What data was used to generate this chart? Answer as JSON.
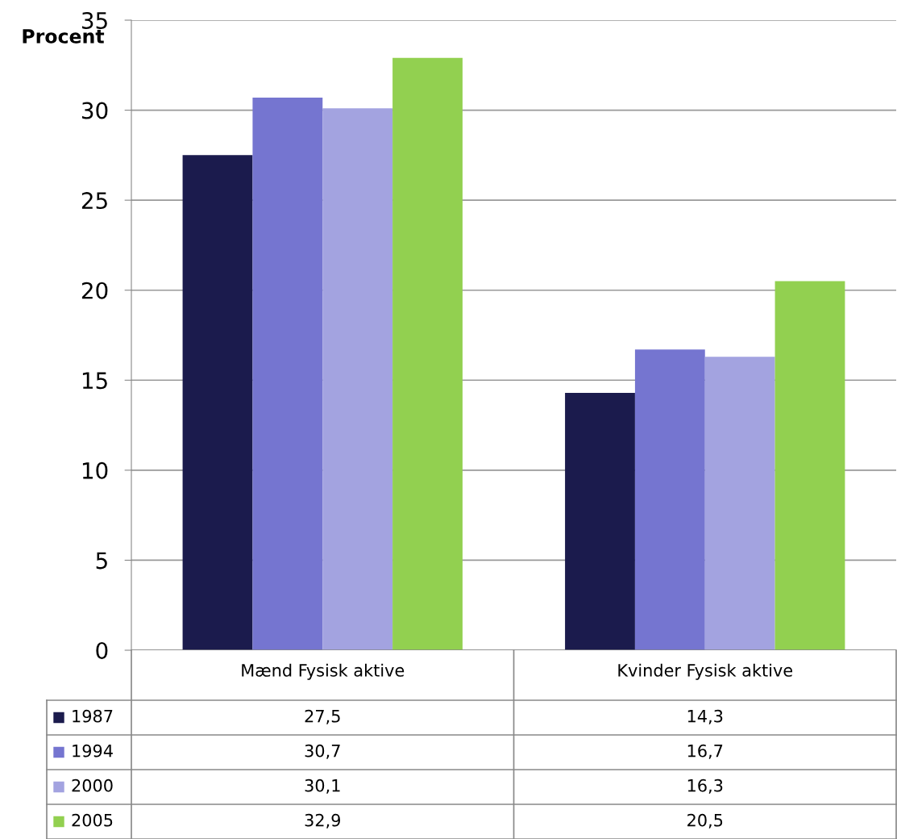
{
  "chart_data": {
    "type": "bar",
    "ylabel": "Procent",
    "categories": [
      "Mænd Fysisk aktive",
      "Kvinder Fysisk aktive"
    ],
    "series": [
      {
        "name": "1987",
        "color": "#1b1b4d",
        "values": [
          27.5,
          14.3
        ],
        "value_labels": [
          "27,5",
          "14,3"
        ]
      },
      {
        "name": "1994",
        "color": "#7575d0",
        "values": [
          30.7,
          16.7
        ],
        "value_labels": [
          "30,7",
          "16,7"
        ]
      },
      {
        "name": "2000",
        "color": "#a3a3e0",
        "values": [
          30.1,
          16.3
        ],
        "value_labels": [
          "30,1",
          "16,3"
        ]
      },
      {
        "name": "2005",
        "color": "#92d050",
        "values": [
          32.9,
          20.5
        ],
        "value_labels": [
          "32,9",
          "20,5"
        ]
      }
    ],
    "ylim": [
      0,
      35
    ],
    "yticks": [
      0,
      5,
      10,
      15,
      20,
      25,
      30,
      35
    ],
    "grid": "y",
    "legend": "bottom"
  }
}
